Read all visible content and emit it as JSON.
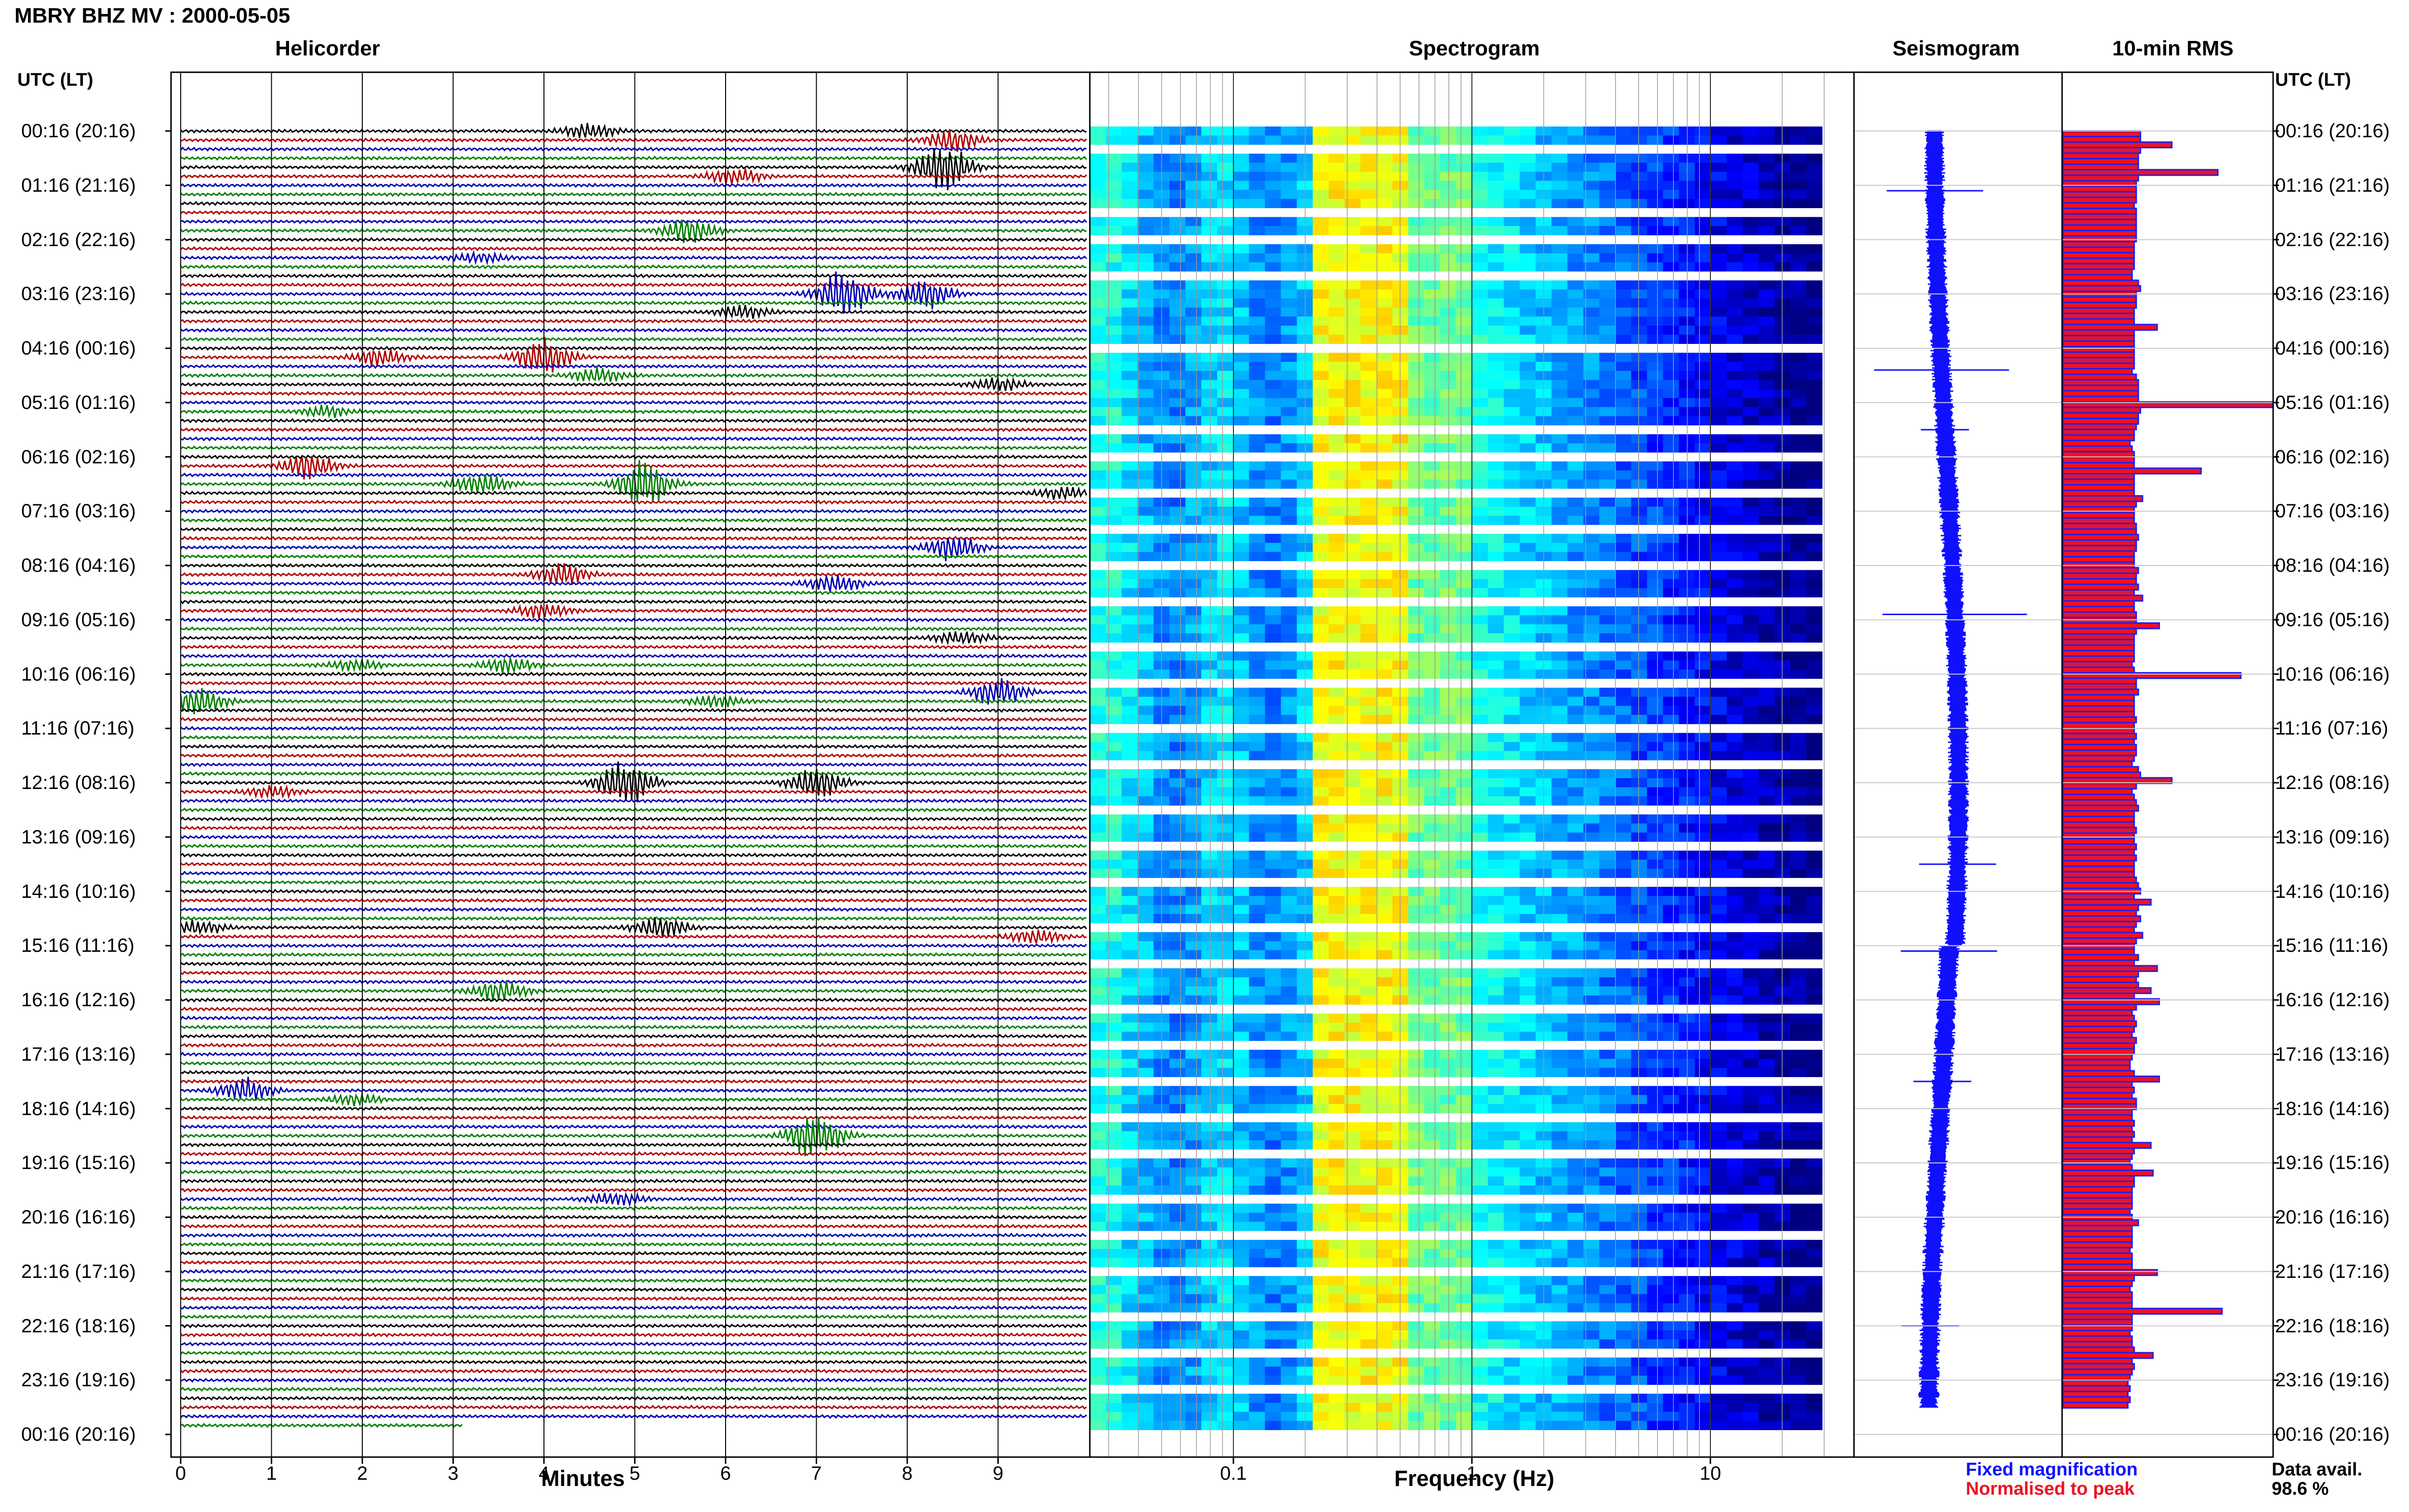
{
  "header": {
    "title": "MBRY BHZ MV : 2000-05-05"
  },
  "panels": {
    "helicorder": "Helicorder",
    "spectrogram": "Spectrogram",
    "seismogram": "Seismogram",
    "rms": "10-min RMS"
  },
  "axes": {
    "left_header": "UTC (LT)",
    "right_header": "UTC (LT)",
    "minutes_label": "Minutes",
    "frequency_label": "Frequency (Hz)"
  },
  "footer": {
    "fixed": "Fixed magnification",
    "normalised": "Normalised to peak",
    "avail_label": "Data avail.",
    "avail_value": "98.6 %"
  },
  "colors": {
    "trace_cycle": [
      "#000000",
      "#b00000",
      "#0000b0",
      "#008000"
    ],
    "seismogram": "#1010ff",
    "rms_fill": "#ee1122",
    "rms_outline": "#2020ee"
  },
  "chart_data": [
    {
      "type": "line",
      "name": "helicorder",
      "title": "Helicorder",
      "xlabel": "Minutes",
      "xlim": [
        0,
        10
      ],
      "x_ticks": [
        "0",
        "1",
        "2",
        "3",
        "4",
        "5",
        "6",
        "7",
        "8",
        "9"
      ],
      "rows_per_hour": 6,
      "rows": 144,
      "y_tick_labels": [
        "00:16 (20:16)",
        "01:16 (21:16)",
        "02:16 (22:16)",
        "03:16 (23:16)",
        "04:16 (00:16)",
        "05:16 (01:16)",
        "06:16 (02:16)",
        "07:16 (03:16)",
        "08:16 (04:16)",
        "09:16 (05:16)",
        "10:16 (06:16)",
        "11:16 (07:16)",
        "12:16 (08:16)",
        "13:16 (09:16)",
        "14:16 (10:16)",
        "15:16 (11:16)",
        "16:16 (12:16)",
        "17:16 (13:16)",
        "18:16 (14:16)",
        "19:16 (15:16)",
        "20:16 (16:16)",
        "21:16 (17:16)",
        "22:16 (18:16)",
        "23:16 (19:16)",
        "00:16 (20:16)"
      ],
      "events": [
        {
          "row": 1,
          "minute": 8.5,
          "amp": 1.3
        },
        {
          "row": 0,
          "minute": 4.5,
          "amp": 0.8
        },
        {
          "row": 4,
          "minute": 8.4,
          "amp": 2.6
        },
        {
          "row": 5,
          "minute": 6.1,
          "amp": 0.9
        },
        {
          "row": 11,
          "minute": 5.6,
          "amp": 1.4
        },
        {
          "row": 14,
          "minute": 3.3,
          "amp": 0.6
        },
        {
          "row": 18,
          "minute": 7.3,
          "amp": 2.5
        },
        {
          "row": 18,
          "minute": 8.2,
          "amp": 1.6
        },
        {
          "row": 20,
          "minute": 6.2,
          "amp": 0.7
        },
        {
          "row": 25,
          "minute": 4.0,
          "amp": 2.0
        },
        {
          "row": 25,
          "minute": 2.2,
          "amp": 1.0
        },
        {
          "row": 27,
          "minute": 4.6,
          "amp": 0.8
        },
        {
          "row": 28,
          "minute": 9.0,
          "amp": 0.7
        },
        {
          "row": 31,
          "minute": 1.6,
          "amp": 0.6
        },
        {
          "row": 37,
          "minute": 1.4,
          "amp": 1.4
        },
        {
          "row": 39,
          "minute": 5.1,
          "amp": 2.5
        },
        {
          "row": 39,
          "minute": 3.3,
          "amp": 1.3
        },
        {
          "row": 40,
          "minute": 9.7,
          "amp": 0.6
        },
        {
          "row": 46,
          "minute": 8.5,
          "amp": 1.4
        },
        {
          "row": 49,
          "minute": 4.2,
          "amp": 1.2
        },
        {
          "row": 50,
          "minute": 7.2,
          "amp": 1.0
        },
        {
          "row": 53,
          "minute": 4.0,
          "amp": 0.8
        },
        {
          "row": 56,
          "minute": 8.6,
          "amp": 0.7
        },
        {
          "row": 59,
          "minute": 3.6,
          "amp": 0.8
        },
        {
          "row": 59,
          "minute": 1.9,
          "amp": 0.6
        },
        {
          "row": 62,
          "minute": 9.0,
          "amp": 1.5
        },
        {
          "row": 63,
          "minute": 0.2,
          "amp": 1.4
        },
        {
          "row": 63,
          "minute": 5.9,
          "amp": 0.7
        },
        {
          "row": 72,
          "minute": 4.9,
          "amp": 2.5
        },
        {
          "row": 72,
          "minute": 7.0,
          "amp": 1.7
        },
        {
          "row": 73,
          "minute": 1.0,
          "amp": 0.6
        },
        {
          "row": 88,
          "minute": 5.3,
          "amp": 1.2
        },
        {
          "row": 88,
          "minute": 0.2,
          "amp": 0.8
        },
        {
          "row": 89,
          "minute": 9.4,
          "amp": 0.8
        },
        {
          "row": 95,
          "minute": 3.5,
          "amp": 1.1
        },
        {
          "row": 106,
          "minute": 0.7,
          "amp": 1.3
        },
        {
          "row": 107,
          "minute": 1.9,
          "amp": 0.6
        },
        {
          "row": 111,
          "minute": 7.0,
          "amp": 2.6
        },
        {
          "row": 118,
          "minute": 4.8,
          "amp": 0.7
        }
      ],
      "last_row_extent_minutes": 3.1
    },
    {
      "type": "heatmap",
      "name": "spectrogram",
      "title": "Spectrogram",
      "xlabel": "Frequency (Hz)",
      "x_scale": "log",
      "xlim": [
        0.025,
        40
      ],
      "x_ticks": [
        "0.1",
        "1",
        "10"
      ],
      "colormap": "jet",
      "peak_band_hz": [
        0.2,
        0.45
      ],
      "white_gap_rows": [
        2,
        9,
        12,
        16,
        24,
        33,
        36,
        40,
        44,
        48,
        52,
        57,
        61,
        66,
        70,
        75,
        79,
        83,
        88,
        92,
        97,
        101,
        105,
        109,
        113,
        118,
        122,
        126,
        131,
        135,
        139
      ]
    },
    {
      "type": "line",
      "name": "seismogram",
      "title": "Seismogram",
      "spikes": [
        {
          "hour": 1.1,
          "amp": 0.5
        },
        {
          "hour": 4.4,
          "amp": 0.7
        },
        {
          "hour": 5.5,
          "amp": 0.25
        },
        {
          "hour": 8.9,
          "amp": 0.75
        },
        {
          "hour": 13.5,
          "amp": 0.4
        },
        {
          "hour": 15.1,
          "amp": 0.5
        },
        {
          "hour": 17.5,
          "amp": 0.3
        },
        {
          "hour": 22.0,
          "amp": 0.3
        }
      ]
    },
    {
      "type": "bar",
      "name": "10-min RMS",
      "title": "10-min RMS",
      "orientation": "horizontal",
      "normalised_peak": 1.0,
      "values": [
        0.37,
        0.37,
        0.52,
        0.37,
        0.36,
        0.36,
        0.36,
        0.74,
        0.36,
        0.35,
        0.35,
        0.35,
        0.35,
        0.34,
        0.35,
        0.35,
        0.35,
        0.35,
        0.35,
        0.35,
        0.34,
        0.34,
        0.34,
        0.34,
        0.34,
        0.33,
        0.33,
        0.36,
        0.37,
        0.35,
        0.35,
        0.35,
        0.34,
        0.34,
        0.34,
        0.45,
        0.34,
        0.34,
        0.34,
        0.34,
        0.34,
        0.34,
        0.34,
        0.33,
        0.35,
        0.36,
        0.36,
        0.36,
        0.36,
        1.0,
        0.37,
        0.36,
        0.36,
        0.35,
        0.34,
        0.34,
        0.32,
        0.33,
        0.34,
        0.34,
        0.34,
        0.66,
        0.34,
        0.34,
        0.34,
        0.34,
        0.38,
        0.35,
        0.34,
        0.34,
        0.34,
        0.35,
        0.35,
        0.36,
        0.35,
        0.35,
        0.34,
        0.34,
        0.34,
        0.36,
        0.35,
        0.35,
        0.36,
        0.34,
        0.38,
        0.34,
        0.34,
        0.35,
        0.35,
        0.46,
        0.35,
        0.34,
        0.34,
        0.34,
        0.34,
        0.34,
        0.33,
        0.34,
        0.85,
        0.35,
        0.35,
        0.36,
        0.34,
        0.34,
        0.34,
        0.34,
        0.35,
        0.34,
        0.34,
        0.35,
        0.34,
        0.35,
        0.35,
        0.34,
        0.33,
        0.36,
        0.37,
        0.52,
        0.35,
        0.33,
        0.34,
        0.35,
        0.36,
        0.34,
        0.34,
        0.34,
        0.35,
        0.34,
        0.34,
        0.35,
        0.34,
        0.35,
        0.34,
        0.34,
        0.34,
        0.35,
        0.36,
        0.37,
        0.34,
        0.42,
        0.36,
        0.35,
        0.37,
        0.35,
        0.34,
        0.38,
        0.35,
        0.34,
        0.34,
        0.36,
        0.34,
        0.45,
        0.36,
        0.35,
        0.36,
        0.42,
        0.34,
        0.46,
        0.35,
        0.33,
        0.34,
        0.35,
        0.34,
        0.33,
        0.35,
        0.34,
        0.34,
        0.33,
        0.32,
        0.32,
        0.34,
        0.46,
        0.33,
        0.34,
        0.33,
        0.35,
        0.35,
        0.33,
        0.33,
        0.34,
        0.33,
        0.34,
        0.33,
        0.42,
        0.34,
        0.33,
        0.32,
        0.33,
        0.43,
        0.34,
        0.34,
        0.33,
        0.33,
        0.33,
        0.33,
        0.32,
        0.33,
        0.36,
        0.33,
        0.33,
        0.33,
        0.33,
        0.32,
        0.33,
        0.33,
        0.33,
        0.45,
        0.34,
        0.33,
        0.32,
        0.33,
        0.33,
        0.33,
        0.76,
        0.33,
        0.33,
        0.33,
        0.32,
        0.33,
        0.33,
        0.34,
        0.43,
        0.33,
        0.34,
        0.33,
        0.32,
        0.31,
        0.32,
        0.31,
        0.32,
        0.31
      ]
    }
  ]
}
